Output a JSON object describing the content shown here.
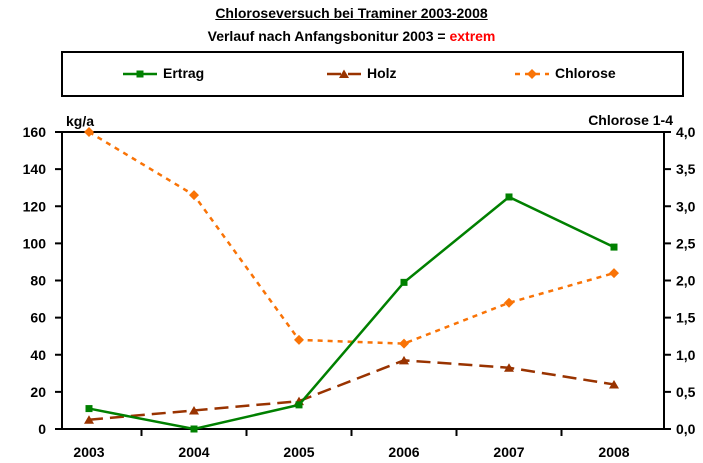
{
  "chart_data": {
    "type": "line",
    "title": "Chloroseversuch bei Traminer 2003-2008",
    "subtitle_prefix": "Verlauf nach Anfangsbonitur 2003 = ",
    "subtitle_highlight": "extrem",
    "highlight_color": "#FF0000",
    "legend_position": "top",
    "grid": false,
    "background_color": "#FFFFFF",
    "categories": [
      "2003",
      "2004",
      "2005",
      "2006",
      "2007",
      "2008"
    ],
    "series": [
      {
        "name": "Ertrag",
        "axis": "left",
        "color": "#008000",
        "dash": "solid",
        "marker": "square",
        "values": [
          11,
          0,
          13,
          79,
          125,
          98
        ]
      },
      {
        "name": "Holz",
        "axis": "left",
        "color": "#993300",
        "dash": "long-dash",
        "marker": "triangle",
        "values": [
          5,
          10,
          15,
          37,
          33,
          24
        ]
      },
      {
        "name": "Chlorose",
        "axis": "right",
        "color": "#F97306",
        "dash": "dot",
        "marker": "diamond",
        "values": [
          4.0,
          3.15,
          1.2,
          1.15,
          1.7,
          2.1
        ]
      }
    ],
    "left_axis": {
      "label": "kg/a",
      "min": 0,
      "max": 160,
      "step": 20,
      "tick_labels": [
        "0",
        "20",
        "40",
        "60",
        "80",
        "100",
        "120",
        "140",
        "160"
      ]
    },
    "right_axis": {
      "label": "Chlorose 1-4",
      "min": 0,
      "max": 4,
      "step": 0.5,
      "tick_labels": [
        "0,0",
        "0,5",
        "1,0",
        "1,5",
        "2,0",
        "2,5",
        "3,0",
        "3,5",
        "4,0"
      ]
    }
  }
}
